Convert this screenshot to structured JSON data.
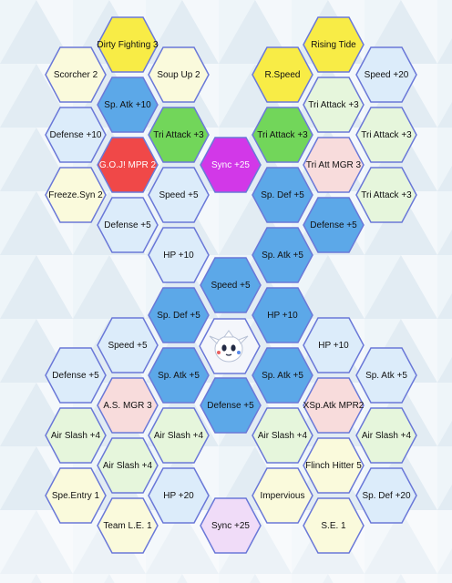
{
  "colors": {
    "yellow": "#f8ec46",
    "blue": "#5ca8e8",
    "green": "#72d65a",
    "red": "#f04848",
    "purple": "#d238e8",
    "pink": "#f8dcdc",
    "lightblue": "#dcecfa",
    "lightgreen": "#e6f6dc",
    "cream": "#fafadc",
    "lavender": "#f0dcf8",
    "border": "#6a78d8"
  },
  "center": {
    "icon": "pokemon-portrait-icon"
  },
  "tiles": [
    {
      "label": "Dirty Fighting 3",
      "type": "yellow"
    },
    {
      "label": "Rising Tide",
      "type": "yellow"
    },
    {
      "label": "Scorcher 2",
      "type": "cream"
    },
    {
      "label": "Soup Up 2",
      "type": "cream"
    },
    {
      "label": "R.Speed",
      "type": "yellow"
    },
    {
      "label": "Speed +20",
      "type": "lightblue"
    },
    {
      "label": "Sp. Atk +10",
      "type": "blue"
    },
    {
      "label": "Tri Attack +3",
      "type": "lightgreen"
    },
    {
      "label": "Defense +10",
      "type": "lightblue"
    },
    {
      "label": "Tri Attack +3",
      "type": "green"
    },
    {
      "label": "Tri Attack +3",
      "type": "green"
    },
    {
      "label": "Tri Attack +3",
      "type": "lightgreen"
    },
    {
      "label": "G.O.J! MPR 2",
      "type": "red"
    },
    {
      "label": "Sync +25",
      "type": "purple"
    },
    {
      "label": "Tri Att MGR 3",
      "type": "pink"
    },
    {
      "label": "Freeze.Syn 2",
      "type": "cream"
    },
    {
      "label": "Speed +5",
      "type": "lightblue"
    },
    {
      "label": "Sp. Def +5",
      "type": "blue"
    },
    {
      "label": "Tri Attack +3",
      "type": "lightgreen"
    },
    {
      "label": "Defense +5",
      "type": "lightblue"
    },
    {
      "label": "Defense +5",
      "type": "blue"
    },
    {
      "label": "HP +10",
      "type": "lightblue"
    },
    {
      "label": "Sp. Atk +5",
      "type": "blue"
    },
    {
      "label": "Speed +5",
      "type": "blue"
    },
    {
      "label": "Sp. Def +5",
      "type": "blue"
    },
    {
      "label": "HP +10",
      "type": "blue"
    },
    {
      "label": "Speed +5",
      "type": "lightblue"
    },
    {
      "label": "HP +10",
      "type": "lightblue"
    },
    {
      "label": "Defense +5",
      "type": "lightblue"
    },
    {
      "label": "Sp. Atk +5",
      "type": "blue"
    },
    {
      "label": "Sp. Atk +5",
      "type": "blue"
    },
    {
      "label": "Sp. Atk +5",
      "type": "lightblue"
    },
    {
      "label": "A.S. MGR 3",
      "type": "pink"
    },
    {
      "label": "Defense +5",
      "type": "blue"
    },
    {
      "label": "XSp.Atk MPR2",
      "type": "pink"
    },
    {
      "label": "Air Slash +4",
      "type": "lightgreen"
    },
    {
      "label": "Air Slash +4",
      "type": "lightgreen"
    },
    {
      "label": "Air Slash +4",
      "type": "lightgreen"
    },
    {
      "label": "Air Slash +4",
      "type": "lightgreen"
    },
    {
      "label": "Air Slash +4",
      "type": "lightgreen"
    },
    {
      "label": "Flinch Hitter 5",
      "type": "cream"
    },
    {
      "label": "Spe.Entry 1",
      "type": "cream"
    },
    {
      "label": "HP +20",
      "type": "lightblue"
    },
    {
      "label": "Impervious",
      "type": "cream"
    },
    {
      "label": "Sp. Def +20",
      "type": "lightblue"
    },
    {
      "label": "Team L.E. 1",
      "type": "cream"
    },
    {
      "label": "Sync +25",
      "type": "lavender"
    },
    {
      "label": "S.E. 1",
      "type": "cream"
    }
  ]
}
